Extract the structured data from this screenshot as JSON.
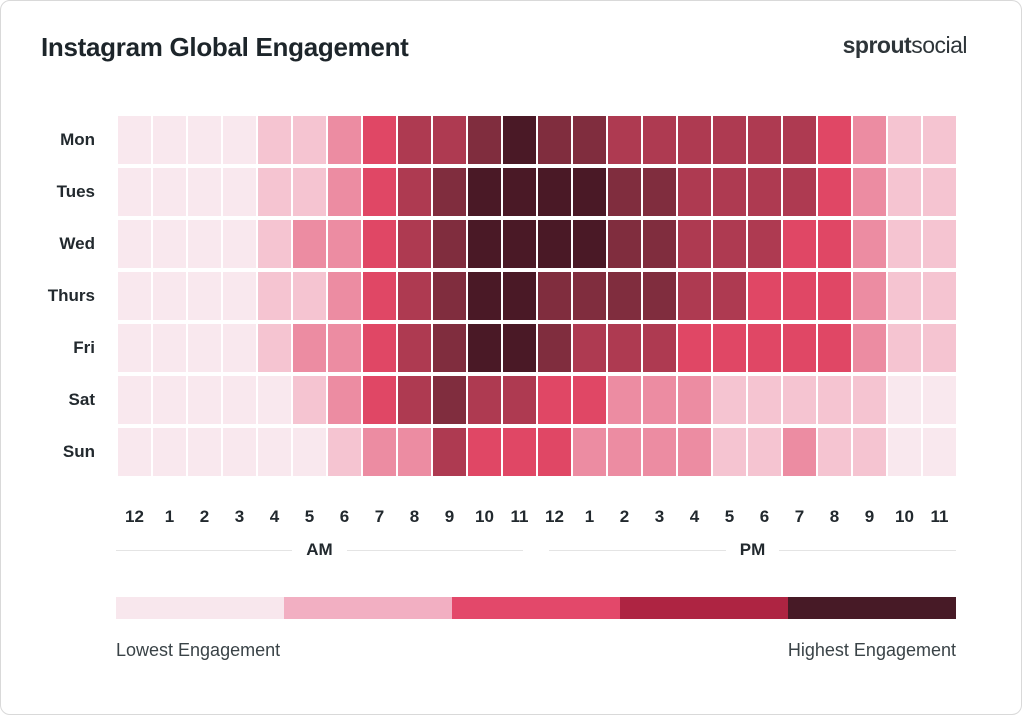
{
  "header": {
    "title": "Instagram Global Engagement",
    "logo_bold": "sprout",
    "logo_light": "social"
  },
  "chart_data": {
    "type": "heatmap",
    "title": "Instagram Global Engagement",
    "rows": [
      "Mon",
      "Tues",
      "Wed",
      "Thurs",
      "Fri",
      "Sat",
      "Sun"
    ],
    "columns": [
      "12",
      "1",
      "2",
      "3",
      "4",
      "5",
      "6",
      "7",
      "8",
      "9",
      "10",
      "11",
      "12",
      "1",
      "2",
      "3",
      "4",
      "5",
      "6",
      "7",
      "8",
      "9",
      "10",
      "11"
    ],
    "column_groups": [
      "AM",
      "PM"
    ],
    "value_note": "engagement level per cell, 1 = lowest, 7 = highest, read from cell shade",
    "values": [
      [
        1,
        1,
        1,
        1,
        2,
        2,
        3,
        4,
        5,
        5,
        6,
        7,
        6,
        6,
        5,
        5,
        5,
        5,
        5,
        5,
        4,
        3,
        2,
        2
      ],
      [
        1,
        1,
        1,
        1,
        2,
        2,
        3,
        4,
        5,
        6,
        7,
        7,
        7,
        7,
        6,
        6,
        5,
        5,
        5,
        5,
        4,
        3,
        2,
        2
      ],
      [
        1,
        1,
        1,
        1,
        2,
        3,
        3,
        4,
        5,
        6,
        7,
        7,
        7,
        7,
        6,
        6,
        5,
        5,
        5,
        4,
        4,
        3,
        2,
        2
      ],
      [
        1,
        1,
        1,
        1,
        2,
        2,
        3,
        4,
        5,
        6,
        7,
        7,
        6,
        6,
        6,
        6,
        5,
        5,
        4,
        4,
        4,
        3,
        2,
        2
      ],
      [
        1,
        1,
        1,
        1,
        2,
        3,
        3,
        4,
        5,
        6,
        7,
        7,
        6,
        5,
        5,
        5,
        4,
        4,
        4,
        4,
        4,
        3,
        2,
        2
      ],
      [
        1,
        1,
        1,
        1,
        1,
        2,
        3,
        4,
        5,
        6,
        5,
        5,
        4,
        4,
        3,
        3,
        3,
        2,
        2,
        2,
        2,
        2,
        1,
        1
      ],
      [
        1,
        1,
        1,
        1,
        1,
        1,
        2,
        3,
        3,
        5,
        4,
        4,
        4,
        3,
        3,
        3,
        3,
        2,
        2,
        3,
        2,
        2,
        1,
        1
      ]
    ],
    "palette": {
      "1": "#F9E8EE",
      "2": "#F5C4D1",
      "3": "#EC8CA2",
      "4": "#E04765",
      "5": "#AE3A51",
      "6": "#802D3E",
      "7": "#4A1926"
    },
    "legend": {
      "colors": [
        "#F8E7ED",
        "#F2AFC2",
        "#E3486A",
        "#AE2442",
        "#471A26"
      ],
      "low_label": "Lowest Engagement",
      "high_label": "Highest Engagement"
    }
  }
}
